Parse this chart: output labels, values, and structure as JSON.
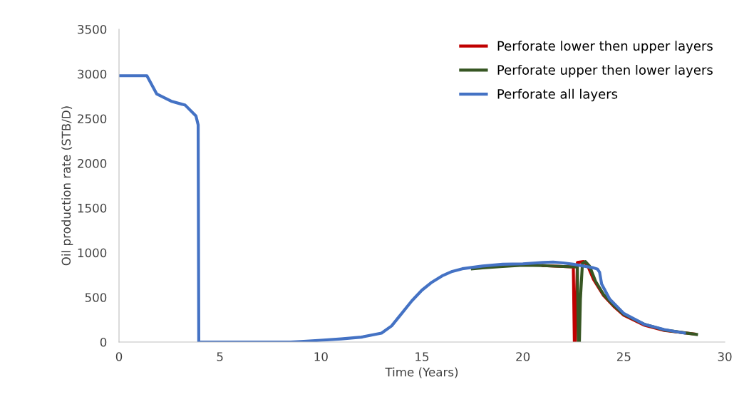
{
  "chart_data": {
    "type": "line",
    "xlabel": "Time (Years)",
    "ylabel": "Oil production rate (STB/D)",
    "xlim": [
      0,
      30
    ],
    "xticks": [
      0,
      5,
      10,
      15,
      20,
      25,
      30
    ],
    "ylim": [
      0,
      3500
    ],
    "yticks": [
      0,
      500,
      1000,
      1500,
      2000,
      2500,
      3000,
      3500
    ],
    "grid": false,
    "legend": "top right",
    "marker": "none",
    "line_style": "solid",
    "series": [
      {
        "name": "Perforate lower then upper layers",
        "color": "#c00000",
        "x": [
          21,
          22,
          22.5,
          22.55,
          22.6,
          22.7,
          23.0,
          23.2,
          23.5,
          24,
          24.5,
          25,
          26,
          27,
          28.5
        ],
        "values": [
          855,
          845,
          840,
          0,
          0,
          890,
          900,
          860,
          700,
          520,
          400,
          300,
          190,
          130,
          90
        ]
      },
      {
        "name": "Perforate upper then lower layers",
        "color": "#375623",
        "x": [
          17.5,
          18,
          19,
          20,
          21,
          22,
          22.7,
          22.75,
          22.8,
          22.85,
          22.95,
          23.1,
          23.3,
          23.6,
          24,
          24.5,
          25,
          26,
          27,
          28.6
        ],
        "values": [
          820,
          830,
          845,
          860,
          855,
          845,
          840,
          0,
          0,
          480,
          880,
          900,
          850,
          680,
          530,
          410,
          310,
          200,
          135,
          85
        ]
      },
      {
        "name": "Perforate all layers",
        "color": "#4472c4",
        "x": [
          0,
          1.38,
          1.87,
          2.58,
          3.28,
          3.81,
          3.92,
          3.95,
          8.5,
          9,
          10,
          11,
          12,
          13,
          13.5,
          14,
          14.5,
          15,
          15.5,
          16,
          16.5,
          17,
          18,
          19,
          20,
          21,
          21.5,
          22,
          22.5,
          23,
          23.5,
          23.7,
          23.8,
          23.9,
          24.3,
          25,
          26,
          27,
          28
        ],
        "values": [
          2980,
          2980,
          2775,
          2695,
          2650,
          2530,
          2430,
          0,
          0,
          5,
          20,
          35,
          55,
          100,
          180,
          320,
          460,
          580,
          670,
          740,
          790,
          820,
          850,
          870,
          875,
          890,
          895,
          885,
          870,
          850,
          830,
          815,
          780,
          650,
          480,
          320,
          200,
          140,
          100
        ]
      }
    ]
  }
}
